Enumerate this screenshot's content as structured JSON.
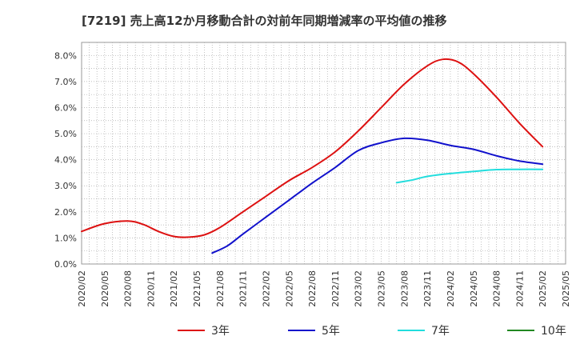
{
  "chart_data": {
    "type": "line",
    "title": "[7219]  売上高12か月移動合計の対前年同期増減率の平均値の推移",
    "xlabel": "",
    "ylabel": "",
    "ylim": [
      0,
      8.5
    ],
    "yticks": [
      "0.0%",
      "1.0%",
      "2.0%",
      "3.0%",
      "4.0%",
      "5.0%",
      "6.0%",
      "7.0%",
      "8.0%"
    ],
    "xticks": [
      "2020/02",
      "2020/05",
      "2020/08",
      "2020/11",
      "2021/02",
      "2021/05",
      "2021/08",
      "2021/11",
      "2022/02",
      "2022/05",
      "2022/08",
      "2022/11",
      "2023/02",
      "2023/05",
      "2023/08",
      "2023/11",
      "2024/02",
      "2024/05",
      "2024/08",
      "2024/11",
      "2025/02",
      "2025/05"
    ],
    "grid": true,
    "legend_position": "bottom",
    "series": [
      {
        "name": "3年",
        "color": "#dd1111",
        "points": [
          [
            "2020/02",
            1.25
          ],
          [
            "2020/05",
            1.55
          ],
          [
            "2020/08",
            1.65
          ],
          [
            "2020/10",
            1.52
          ],
          [
            "2020/12",
            1.25
          ],
          [
            "2021/02",
            1.06
          ],
          [
            "2021/04",
            1.03
          ],
          [
            "2021/06",
            1.12
          ],
          [
            "2021/08",
            1.4
          ],
          [
            "2021/11",
            2.0
          ],
          [
            "2022/02",
            2.6
          ],
          [
            "2022/05",
            3.2
          ],
          [
            "2022/08",
            3.7
          ],
          [
            "2022/11",
            4.3
          ],
          [
            "2023/02",
            5.1
          ],
          [
            "2023/05",
            6.0
          ],
          [
            "2023/08",
            6.9
          ],
          [
            "2023/11",
            7.6
          ],
          [
            "2024/01",
            7.85
          ],
          [
            "2024/03",
            7.75
          ],
          [
            "2024/05",
            7.3
          ],
          [
            "2024/08",
            6.4
          ],
          [
            "2024/11",
            5.4
          ],
          [
            "2025/02",
            4.5
          ]
        ]
      },
      {
        "name": "5年",
        "color": "#1111cc",
        "points": [
          [
            "2021/07",
            0.42
          ],
          [
            "2021/09",
            0.7
          ],
          [
            "2021/11",
            1.15
          ],
          [
            "2022/02",
            1.8
          ],
          [
            "2022/05",
            2.45
          ],
          [
            "2022/08",
            3.1
          ],
          [
            "2022/11",
            3.7
          ],
          [
            "2023/02",
            4.35
          ],
          [
            "2023/05",
            4.65
          ],
          [
            "2023/08",
            4.82
          ],
          [
            "2023/11",
            4.75
          ],
          [
            "2024/02",
            4.55
          ],
          [
            "2024/05",
            4.4
          ],
          [
            "2024/08",
            4.15
          ],
          [
            "2024/11",
            3.95
          ],
          [
            "2025/02",
            3.83
          ]
        ]
      },
      {
        "name": "7年",
        "color": "#22dddd",
        "points": [
          [
            "2023/07",
            3.12
          ],
          [
            "2023/09",
            3.22
          ],
          [
            "2023/11",
            3.36
          ],
          [
            "2024/02",
            3.47
          ],
          [
            "2024/05",
            3.55
          ],
          [
            "2024/08",
            3.62
          ],
          [
            "2024/11",
            3.63
          ],
          [
            "2025/02",
            3.63
          ]
        ]
      },
      {
        "name": "10年",
        "color": "#228822",
        "points": []
      }
    ]
  }
}
